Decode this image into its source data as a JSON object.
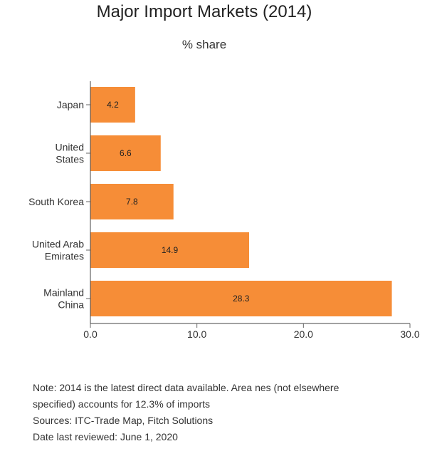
{
  "chart_data": {
    "type": "bar",
    "orientation": "horizontal",
    "title": "Major Import Markets (2014)",
    "subtitle": "% share",
    "categories": [
      [
        "Japan"
      ],
      [
        "United",
        "States"
      ],
      [
        "South Korea"
      ],
      [
        "United Arab",
        "Emirates"
      ],
      [
        "Mainland",
        "China"
      ]
    ],
    "values": [
      4.2,
      6.6,
      7.8,
      14.9,
      28.3
    ],
    "value_labels": [
      "4.2",
      "6.6",
      "7.8",
      "14.9",
      "28.3"
    ],
    "xlim": [
      0,
      30
    ],
    "xticks": [
      0,
      10,
      20,
      30
    ],
    "xtick_labels": [
      "0.0",
      "10.0",
      "20.0",
      "30.0"
    ],
    "grid": false,
    "bar_color": "#F68D37"
  },
  "notes": [
    "Note: 2014 is the latest direct data available. Area nes (not elsewhere",
    "specified) accounts for 12.3% of imports",
    "Sources: ITC-Trade Map, Fitch Solutions",
    "Date last reviewed: June 1, 2020"
  ]
}
